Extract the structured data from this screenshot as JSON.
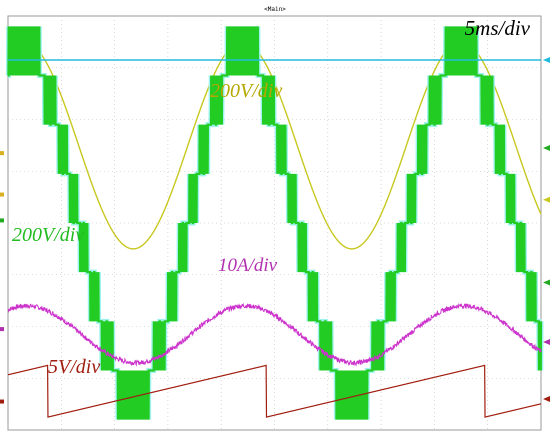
{
  "chart_data": {
    "type": "line",
    "title": "",
    "header_label": "<Main>",
    "timebase": "5ms/div",
    "grid": true,
    "x_divisions": 10,
    "y_divisions": 8,
    "series": [
      {
        "name": "200V/div",
        "color": "#c8c820",
        "waveform": "sine",
        "amplitude_div": 2.0,
        "offset_div": 1.5,
        "period_div": 4.1,
        "peak_time_div": 4.4
      },
      {
        "name": "200V/div",
        "color": "#22cc22",
        "waveform": "multilevel-stepped-sine",
        "levels": 7,
        "amplitude_div": 2.85,
        "offset_div": 0.0,
        "period_div": 4.1,
        "peak_time_div": 4.4
      },
      {
        "name": "10A/div",
        "color": "#cc33cc",
        "waveform": "sine",
        "amplitude_div": 0.55,
        "offset_div": -2.15,
        "period_div": 4.1,
        "peak_time_div": 4.45
      },
      {
        "name": "5V/div",
        "color": "#a01e10",
        "waveform": "sawtooth",
        "low_div": -3.75,
        "high_div": -2.75,
        "period_div": 4.1,
        "reset_time_div": 0.75
      },
      {
        "name": "",
        "color": "#22bbdd",
        "waveform": "dc",
        "level_div": 3.15
      }
    ]
  }
}
